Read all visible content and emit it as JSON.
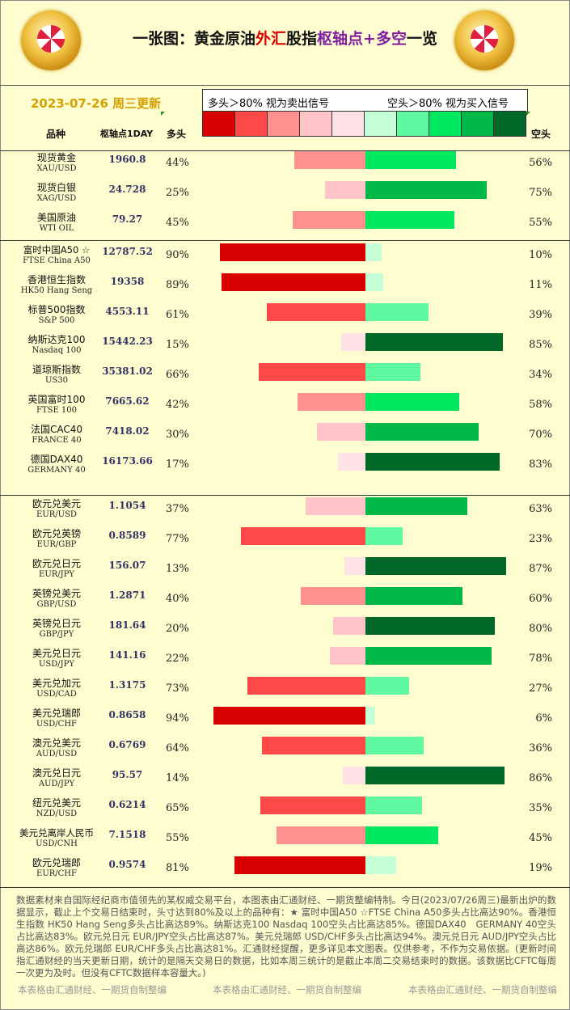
{
  "header": {
    "title_parts": [
      "一张图：黄金原油",
      "外汇",
      "股指",
      "枢轴点+多空",
      "一览"
    ],
    "date": "2023-07-26  周三更新",
    "long_signal": "多头＞80%  视为卖出信号",
    "short_signal": "空头＞80%  视为买入信号"
  },
  "columns": {
    "name": "品种",
    "pivot": "枢轴点1DAY",
    "long": "多头",
    "short": "空头"
  },
  "colors": {
    "legend": [
      "#d80000",
      "#ff4848",
      "#ff9090",
      "#ffc4c8",
      "#ffe2e6",
      "#c4ffd8",
      "#60f8a0",
      "#00e860",
      "#00b848",
      "#006828"
    ]
  },
  "chart_data": {
    "type": "bar",
    "groups": [
      [
        {
          "name": "现货黄金",
          "code": "XAU/USD",
          "pivot": "1960.8",
          "long": 44,
          "short": 56
        },
        {
          "name": "现货白银",
          "code": "XAG/USD",
          "pivot": "24.728",
          "long": 25,
          "short": 75
        },
        {
          "name": "美国原油",
          "code": "WTI OIL",
          "pivot": "79.27",
          "long": 45,
          "short": 55
        }
      ],
      [
        {
          "name": "富时中国A50 ☆",
          "code": "FTSE China A50",
          "pivot": "12787.52",
          "long": 90,
          "short": 10
        },
        {
          "name": "香港恒生指数",
          "code": "HK50 Hang Seng",
          "pivot": "19358",
          "long": 89,
          "short": 11
        },
        {
          "name": "标普500指数",
          "code": "S&P 500",
          "pivot": "4553.11",
          "long": 61,
          "short": 39
        },
        {
          "name": "纳斯达克100",
          "code": "Nasdaq 100",
          "pivot": "15442.23",
          "long": 15,
          "short": 85
        },
        {
          "name": "道琼斯指数",
          "code": "US30",
          "pivot": "35381.02",
          "long": 66,
          "short": 34
        },
        {
          "name": "英国富时100",
          "code": "FTSE 100",
          "pivot": "7665.62",
          "long": 42,
          "short": 58
        },
        {
          "name": "法国CAC40",
          "code": "FRANCE 40",
          "pivot": "7418.02",
          "long": 30,
          "short": 70
        },
        {
          "name": "德国DAX40",
          "code": "GERMANY 40",
          "pivot": "16173.66",
          "long": 17,
          "short": 83
        }
      ],
      [
        {
          "name": "欧元兑美元",
          "code": "EUR/USD",
          "pivot": "1.1054",
          "long": 37,
          "short": 63
        },
        {
          "name": "欧元兑英镑",
          "code": "EUR/GBP",
          "pivot": "0.8589",
          "long": 77,
          "short": 23
        },
        {
          "name": "欧元兑日元",
          "code": "EUR/JPY",
          "pivot": "156.07",
          "long": 13,
          "short": 87
        },
        {
          "name": "英镑兑美元",
          "code": "GBP/USD",
          "pivot": "1.2871",
          "long": 40,
          "short": 60
        },
        {
          "name": "英镑兑日元",
          "code": "GBP/JPY",
          "pivot": "181.64",
          "long": 20,
          "short": 80
        },
        {
          "name": "美元兑日元",
          "code": "USD/JPY",
          "pivot": "141.16",
          "long": 22,
          "short": 78
        },
        {
          "name": "美元兑加元",
          "code": "USD/CAD",
          "pivot": "1.3175",
          "long": 73,
          "short": 27
        },
        {
          "name": "美元兑瑞郎",
          "code": "USD/CHF",
          "pivot": "0.8658",
          "long": 94,
          "short": 6
        },
        {
          "name": "澳元兑美元",
          "code": "AUD/USD",
          "pivot": "0.6769",
          "long": 64,
          "short": 36
        },
        {
          "name": "澳元兑日元",
          "code": "AUD/JPY",
          "pivot": "95.57",
          "long": 14,
          "short": 86
        },
        {
          "name": "纽元兑美元",
          "code": "NZD/USD",
          "pivot": "0.6214",
          "long": 65,
          "short": 35
        },
        {
          "name": "美元兑离岸人民币",
          "code": "USD/CNH",
          "pivot": "7.1518",
          "long": 55,
          "short": 45
        },
        {
          "name": "欧元兑瑞郎",
          "code": "EUR/CHF",
          "pivot": "0.9574",
          "long": 81,
          "short": 19
        }
      ]
    ]
  },
  "footer": {
    "text": "数据素材来自国际经纪商市值领先的某权威交易平台，本图表由汇通财经、一期货整编特制。今日(2023/07/26周三)最新出炉的数据显示，截止上个交易日结束时，头寸达到80%及以上的品种有：★ 富时中国A50 ☆FTSE China A50多头占比高达90%。香港恒生指数 HK50 Hang Seng多头占比高达89%。纳斯达克100 Nasdaq 100空头占比高达85%。德国DAX40　GERMANY 40空头占比高达83%。欧元兑日元 EUR/JPY空头占比高达87%。美元兑瑞郎 USD/CHF多头占比高达94%。澳元兑日元 AUD/JPY空头占比高达86%。欧元兑瑞郎 EUR/CHF多头占比高达81%。汇通财经提醒，更多详见本文图表。仅供参考，不作为交易依据。(更新时间指汇通财经的当天更新日期，统计的是隔天交易日的数据，比如本周三统计的是截止本周二交易结束时的数据。该数据比CFTC每周一次更为及时。但没有CFTC数据样本容量大。)",
    "watermark": "本表格由汇通财经、一期货自制整编"
  }
}
